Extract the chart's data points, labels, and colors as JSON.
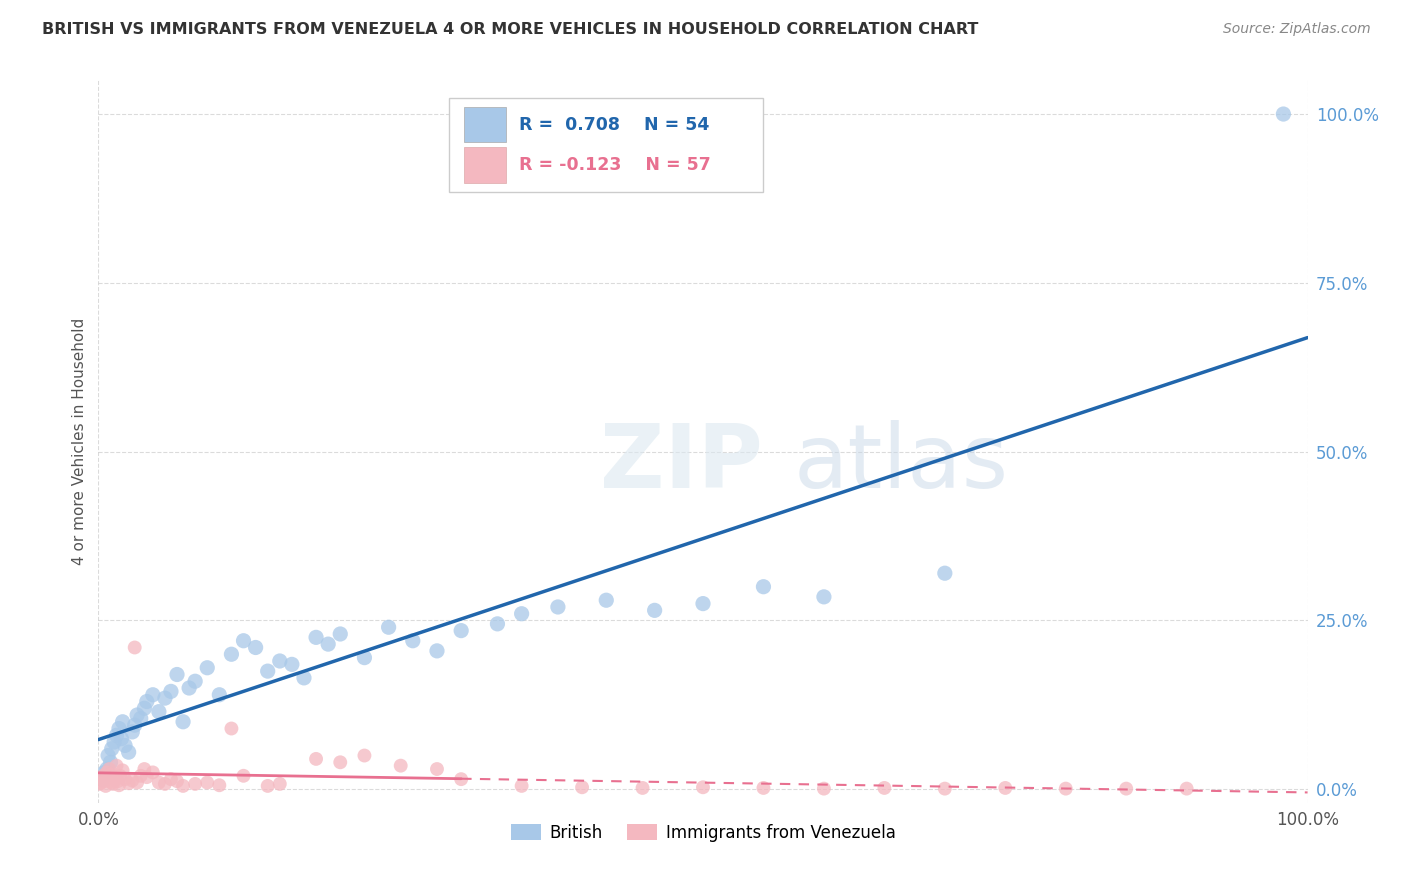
{
  "title": "BRITISH VS IMMIGRANTS FROM VENEZUELA 4 OR MORE VEHICLES IN HOUSEHOLD CORRELATION CHART",
  "source": "Source: ZipAtlas.com",
  "ylabel": "4 or more Vehicles in Household",
  "xlim": [
    0,
    100
  ],
  "ylim": [
    -2,
    105
  ],
  "yticks": [
    0,
    25,
    50,
    75,
    100
  ],
  "ytick_labels": [
    "0.0%",
    "25.0%",
    "50.0%",
    "75.0%",
    "100.0%"
  ],
  "xtick_labels": [
    "0.0%",
    "100.0%"
  ],
  "british_R": 0.708,
  "british_N": 54,
  "venezuela_R": -0.123,
  "venezuela_N": 57,
  "british_color": "#a8c8e8",
  "venezuela_color": "#f4b8c0",
  "british_line_color": "#2166ac",
  "venezuela_line_color": "#e87090",
  "watermark_zip": "ZIP",
  "watermark_atlas": "atlas",
  "british_x": [
    0.3,
    0.5,
    0.7,
    0.8,
    1.0,
    1.1,
    1.3,
    1.5,
    1.7,
    1.9,
    2.0,
    2.2,
    2.5,
    2.8,
    3.0,
    3.2,
    3.5,
    3.8,
    4.0,
    4.5,
    5.0,
    5.5,
    6.0,
    6.5,
    7.0,
    7.5,
    8.0,
    9.0,
    10.0,
    11.0,
    12.0,
    13.0,
    14.0,
    15.0,
    16.0,
    17.0,
    18.0,
    19.0,
    20.0,
    22.0,
    24.0,
    26.0,
    28.0,
    30.0,
    33.0,
    35.0,
    38.0,
    42.0,
    46.0,
    50.0,
    55.0,
    60.0,
    70.0,
    98.0
  ],
  "british_y": [
    1.5,
    2.5,
    3.0,
    5.0,
    4.0,
    6.0,
    7.0,
    8.0,
    9.0,
    7.5,
    10.0,
    6.5,
    5.5,
    8.5,
    9.5,
    11.0,
    10.5,
    12.0,
    13.0,
    14.0,
    11.5,
    13.5,
    14.5,
    17.0,
    10.0,
    15.0,
    16.0,
    18.0,
    14.0,
    20.0,
    22.0,
    21.0,
    17.5,
    19.0,
    18.5,
    16.5,
    22.5,
    21.5,
    23.0,
    19.5,
    24.0,
    22.0,
    20.5,
    23.5,
    24.5,
    26.0,
    27.0,
    28.0,
    26.5,
    27.5,
    30.0,
    28.5,
    32.0,
    100.0
  ],
  "venezuela_x": [
    0.1,
    0.2,
    0.3,
    0.4,
    0.5,
    0.6,
    0.7,
    0.8,
    0.9,
    1.0,
    1.1,
    1.2,
    1.4,
    1.5,
    1.6,
    1.7,
    1.8,
    2.0,
    2.2,
    2.5,
    2.8,
    3.0,
    3.2,
    3.5,
    3.8,
    4.0,
    4.5,
    5.0,
    5.5,
    6.0,
    6.5,
    7.0,
    8.0,
    9.0,
    10.0,
    11.0,
    12.0,
    14.0,
    15.0,
    18.0,
    20.0,
    22.0,
    25.0,
    28.0,
    30.0,
    35.0,
    40.0,
    45.0,
    50.0,
    55.0,
    60.0,
    65.0,
    70.0,
    75.0,
    80.0,
    85.0,
    90.0
  ],
  "venezuela_y": [
    0.8,
    1.0,
    1.5,
    2.0,
    1.2,
    0.5,
    2.5,
    1.8,
    3.0,
    2.2,
    1.0,
    0.8,
    1.5,
    3.5,
    1.2,
    0.6,
    2.0,
    2.8,
    1.5,
    0.9,
    1.3,
    21.0,
    1.0,
    2.0,
    3.0,
    1.8,
    2.5,
    1.0,
    0.8,
    1.5,
    1.2,
    0.5,
    0.8,
    1.0,
    0.6,
    9.0,
    2.0,
    0.5,
    0.8,
    4.5,
    4.0,
    5.0,
    3.5,
    3.0,
    1.5,
    0.5,
    0.3,
    0.2,
    0.3,
    0.2,
    0.1,
    0.2,
    0.1,
    0.2,
    0.1,
    0.1,
    0.1
  ],
  "background_color": "#ffffff",
  "grid_color": "#cccccc",
  "title_color": "#333333",
  "axis_label_color": "#555555",
  "yaxis_tick_color": "#5b9bd5"
}
